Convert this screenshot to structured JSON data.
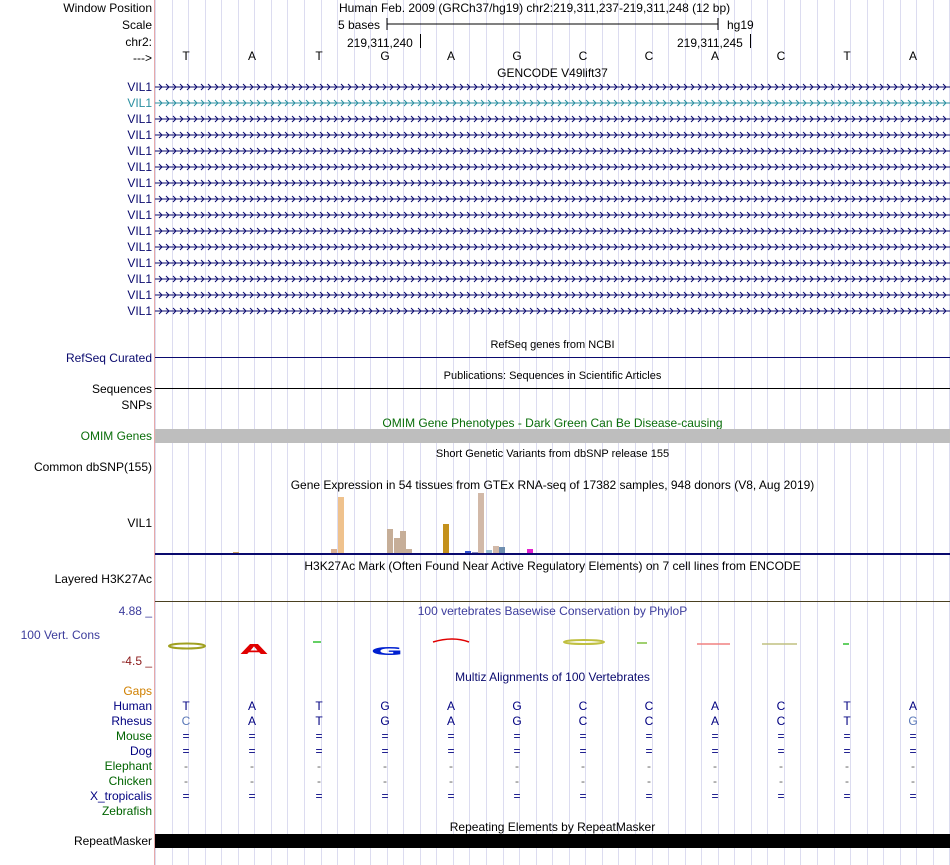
{
  "header": {
    "window_position_label": "Window Position",
    "scale_label": "Scale",
    "chrom_label": "chr2:",
    "strand_label": "--->",
    "assembly_text": "Human Feb. 2009 (GRCh37/hg19)   chr2:219,311,237-219,311,248 (12 bp)",
    "scale_text": "5 bases",
    "db_text": "hg19",
    "coord_left": "219,311,240",
    "coord_right": "219,311,245"
  },
  "bases": [
    "T",
    "A",
    "T",
    "G",
    "A",
    "G",
    "C",
    "C",
    "A",
    "C",
    "T",
    "A"
  ],
  "gencode": {
    "title": "GENCODE V49lift37",
    "genes": [
      "VIL1",
      "VIL1",
      "VIL1",
      "VIL1",
      "VIL1",
      "VIL1",
      "VIL1",
      "VIL1",
      "VIL1",
      "VIL1",
      "VIL1",
      "VIL1",
      "VIL1",
      "VIL1",
      "VIL1"
    ]
  },
  "refseq": {
    "title": "RefSeq genes from NCBI",
    "label": "RefSeq Curated"
  },
  "publications": {
    "title": "Publications: Sequences in Scientific Articles",
    "label": "Sequences"
  },
  "snps": {
    "label": "SNPs"
  },
  "omim": {
    "title": "OMIM Gene Phenotypes - Dark Green Can Be Disease-causing",
    "label": "OMIM Genes"
  },
  "dbsnp": {
    "title": "Short Genetic Variants from dbSNP release 155",
    "label": "Common dbSNP(155)"
  },
  "gtex": {
    "title": "Gene Expression in 54 tissues from GTEx RNA-seq of 17382 samples, 948 donors (V8, Aug 2019)",
    "label": "VIL1"
  },
  "h3k27ac": {
    "title": "H3K27Ac Mark (Often Found Near Active Regulatory Elements) on 7 cell lines from ENCODE",
    "label": "Layered H3K27Ac"
  },
  "phylop": {
    "title": "100 vertebrates Basewise Conservation by PhyloP",
    "label": "100 Vert. Cons",
    "max": "4.88 _",
    "min": "-4.5 _"
  },
  "multiz": {
    "title": "Multiz Alignments of 100 Vertebrates",
    "species": [
      {
        "name": "Gaps",
        "color": "#d08000",
        "row": []
      },
      {
        "name": "Human",
        "color": "#000080",
        "row": [
          "T",
          "A",
          "T",
          "G",
          "A",
          "G",
          "C",
          "C",
          "A",
          "C",
          "T",
          "A"
        ]
      },
      {
        "name": "Rhesus",
        "color": "#000080",
        "row": [
          "C",
          "A",
          "T",
          "G",
          "A",
          "G",
          "C",
          "C",
          "A",
          "C",
          "T",
          "G"
        ]
      },
      {
        "name": "Mouse",
        "color": "#006400",
        "row": [
          "=",
          "=",
          "=",
          "=",
          "=",
          "=",
          "=",
          "=",
          "=",
          "=",
          "=",
          "="
        ]
      },
      {
        "name": "Dog",
        "color": "#000080",
        "row": [
          "=",
          "=",
          "=",
          "=",
          "=",
          "=",
          "=",
          "=",
          "=",
          "=",
          "=",
          "="
        ]
      },
      {
        "name": "Elephant",
        "color": "#006400",
        "row": [
          "-",
          "-",
          "-",
          "-",
          "-",
          "-",
          "-",
          "-",
          "-",
          "-",
          "-",
          "-"
        ]
      },
      {
        "name": "Chicken",
        "color": "#006400",
        "row": [
          "-",
          "-",
          "-",
          "-",
          "-",
          "-",
          "-",
          "-",
          "-",
          "-",
          "-",
          "-"
        ]
      },
      {
        "name": "X_tropicalis",
        "color": "#000080",
        "row": [
          "=",
          "=",
          "=",
          "=",
          "=",
          "=",
          "=",
          "=",
          "=",
          "=",
          "=",
          "="
        ]
      },
      {
        "name": "Zebrafish",
        "color": "#006400",
        "row": []
      }
    ]
  },
  "repeatmasker": {
    "title": "Repeating Elements by RepeatMasker",
    "label": "RepeatMasker"
  },
  "colors": {
    "gene_navy": "#0a0a6e",
    "gene_teal": "#2a8fa0",
    "omim_gray": "#bebebe",
    "omim_green": "#0a6e0a",
    "phylop_blue": "#3c3c9c",
    "phylop_red": "#8b1a1a"
  }
}
